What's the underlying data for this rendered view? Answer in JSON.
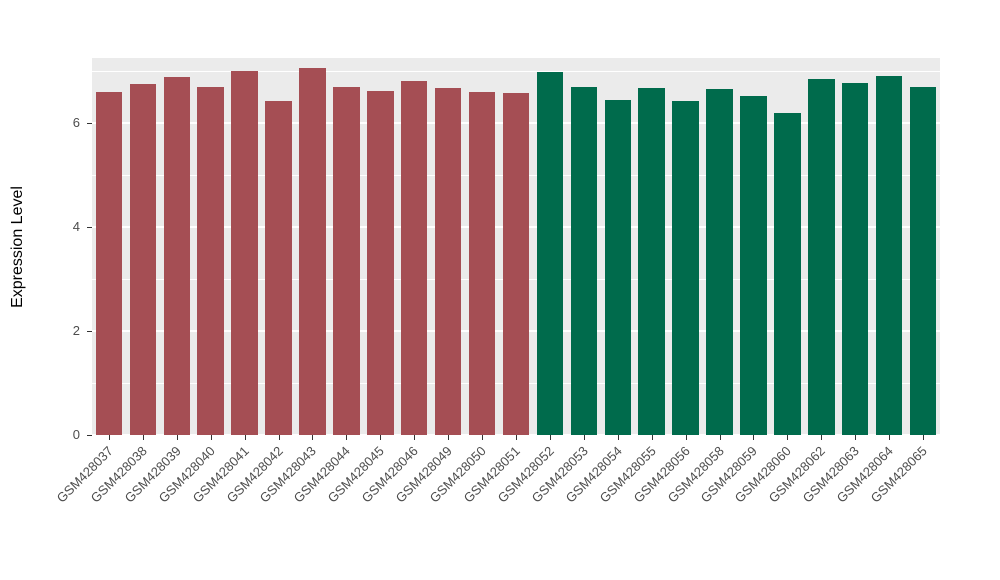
{
  "figure": {
    "background": "#FFFFFF",
    "panel_background": "#EBEBEB",
    "gridline_color": "#FFFFFF",
    "tick_color": "#333333",
    "tick_label_color": "#4D4D4D",
    "axis_title_color": "#000000"
  },
  "chart_data": {
    "type": "bar",
    "title": "",
    "xlabel": "",
    "ylabel": "Expression Level",
    "ylim": [
      0,
      7.25
    ],
    "yticks": [
      0,
      2,
      4,
      6
    ],
    "minor_ticks": [
      1,
      3,
      5,
      7
    ],
    "grid": "on",
    "legend": "none",
    "categories": [
      "GSM428037",
      "GSM428038",
      "GSM428039",
      "GSM428040",
      "GSM428041",
      "GSM428042",
      "GSM428043",
      "GSM428044",
      "GSM428045",
      "GSM428046",
      "GSM428049",
      "GSM428050",
      "GSM428051",
      "GSM428052",
      "GSM428053",
      "GSM428054",
      "GSM428055",
      "GSM428056",
      "GSM428058",
      "GSM428059",
      "GSM428060",
      "GSM428062",
      "GSM428063",
      "GSM428064",
      "GSM428065"
    ],
    "values": [
      6.6,
      6.75,
      6.88,
      6.7,
      7.0,
      6.42,
      7.05,
      6.7,
      6.62,
      6.8,
      6.67,
      6.6,
      6.57,
      6.98,
      6.7,
      6.45,
      6.67,
      6.42,
      6.65,
      6.52,
      6.2,
      6.84,
      6.77,
      6.9,
      6.7
    ],
    "groups": [
      "A",
      "A",
      "A",
      "A",
      "A",
      "A",
      "A",
      "A",
      "A",
      "A",
      "A",
      "A",
      "A",
      "B",
      "B",
      "B",
      "B",
      "B",
      "B",
      "B",
      "B",
      "B",
      "B",
      "B",
      "B"
    ],
    "group_colors": {
      "A": "#A54E54",
      "B": "#006B4C"
    }
  }
}
